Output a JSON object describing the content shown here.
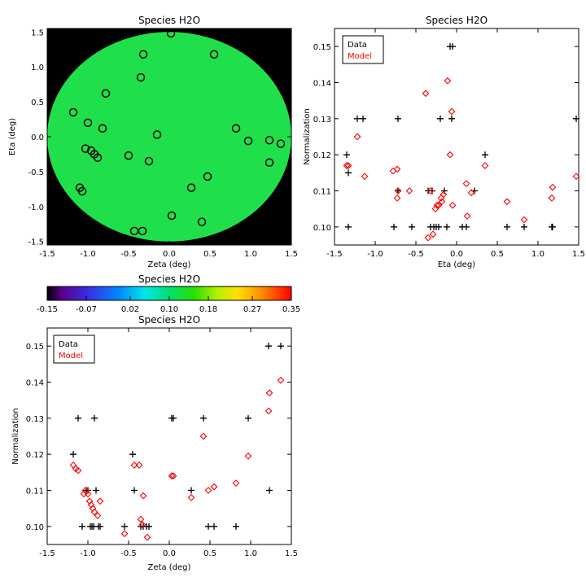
{
  "colors": {
    "data": "#000000",
    "model": "#ff0000",
    "field": "#1fe04a",
    "mask": "#000000"
  },
  "chart_data": [
    {
      "id": "map",
      "type": "scatter",
      "title": "Species H2O",
      "xlabel": "Zeta (deg)",
      "ylabel": "Eta (deg)",
      "xlim": [
        -1.5,
        1.5
      ],
      "ylim": [
        -1.55,
        1.55
      ],
      "xticks": [
        "-1.5",
        "-1.0",
        "-0.5",
        "0.0",
        "0.5",
        "1.0",
        "1.5"
      ],
      "yticks": [
        "-1.5",
        "-1.0",
        "-0.5",
        "0.0",
        "0.5",
        "1.0",
        "1.5"
      ],
      "field_radius": 1.5,
      "points": [
        {
          "x": 0.02,
          "y": 1.48
        },
        {
          "x": -0.32,
          "y": 1.18
        },
        {
          "x": 0.55,
          "y": 1.18
        },
        {
          "x": -0.35,
          "y": 0.85
        },
        {
          "x": -0.78,
          "y": 0.62
        },
        {
          "x": -1.18,
          "y": 0.35
        },
        {
          "x": -1.0,
          "y": 0.2
        },
        {
          "x": -0.82,
          "y": 0.12
        },
        {
          "x": -0.15,
          "y": 0.03
        },
        {
          "x": 0.82,
          "y": 0.12
        },
        {
          "x": 0.97,
          "y": -0.06
        },
        {
          "x": 1.23,
          "y": -0.05
        },
        {
          "x": 1.37,
          "y": -0.1
        },
        {
          "x": -1.03,
          "y": -0.17
        },
        {
          "x": -0.96,
          "y": -0.2
        },
        {
          "x": -0.92,
          "y": -0.25
        },
        {
          "x": -0.88,
          "y": -0.3
        },
        {
          "x": -0.5,
          "y": -0.27
        },
        {
          "x": -0.25,
          "y": -0.35
        },
        {
          "x": 1.23,
          "y": -0.37
        },
        {
          "x": 0.47,
          "y": -0.57
        },
        {
          "x": 0.27,
          "y": -0.73
        },
        {
          "x": -1.1,
          "y": -0.73
        },
        {
          "x": -1.07,
          "y": -0.78
        },
        {
          "x": 0.03,
          "y": -1.13
        },
        {
          "x": 0.4,
          "y": -1.22
        },
        {
          "x": -0.43,
          "y": -1.35
        },
        {
          "x": -0.33,
          "y": -1.35
        }
      ]
    },
    {
      "id": "colorbar",
      "type": "heatmap",
      "title": "Species H2O",
      "range": [
        -0.15,
        0.35
      ],
      "ticks": [
        "-0.15",
        "-0.07",
        "0.02",
        "0.10",
        "0.18",
        "0.27",
        "0.35"
      ]
    },
    {
      "id": "eta",
      "type": "scatter",
      "title": "Species H2O",
      "xlabel": "Eta (deg)",
      "ylabel": "Normalization",
      "xlim": [
        -1.5,
        1.5
      ],
      "ylim": [
        0.095,
        0.155
      ],
      "xticks": [
        "-1.5",
        "-1.0",
        "-0.5",
        "0.0",
        "0.5",
        "1.0",
        "1.5"
      ],
      "yticks": [
        "0.10",
        "0.11",
        "0.12",
        "0.13",
        "0.14",
        "0.15"
      ],
      "legend": [
        "Data",
        "Model"
      ],
      "series": [
        {
          "name": "Data",
          "marker": "plus",
          "points": [
            [
              -1.35,
              0.12
            ],
            [
              -1.33,
              0.115
            ],
            [
              -1.33,
              0.1
            ],
            [
              -1.22,
              0.13
            ],
            [
              -1.15,
              0.13
            ],
            [
              -0.77,
              0.1
            ],
            [
              -0.72,
              0.13
            ],
            [
              -0.72,
              0.11
            ],
            [
              -0.55,
              0.1
            ],
            [
              -0.35,
              0.11
            ],
            [
              -0.3,
              0.11
            ],
            [
              -0.32,
              0.1
            ],
            [
              -0.28,
              0.1
            ],
            [
              -0.25,
              0.1
            ],
            [
              -0.22,
              0.1
            ],
            [
              -0.2,
              0.13
            ],
            [
              -0.15,
              0.11
            ],
            [
              -0.12,
              0.1
            ],
            [
              -0.08,
              0.15
            ],
            [
              -0.05,
              0.15
            ],
            [
              -0.06,
              0.13
            ],
            [
              0.07,
              0.1
            ],
            [
              0.12,
              0.1
            ],
            [
              0.22,
              0.11
            ],
            [
              0.35,
              0.12
            ],
            [
              0.62,
              0.1
            ],
            [
              0.83,
              0.1
            ],
            [
              1.17,
              0.1
            ],
            [
              1.18,
              0.1
            ],
            [
              1.47,
              0.13
            ]
          ]
        },
        {
          "name": "Model",
          "marker": "diamond",
          "points": [
            [
              -1.35,
              0.117
            ],
            [
              -1.33,
              0.117
            ],
            [
              -1.22,
              0.125
            ],
            [
              -1.13,
              0.114
            ],
            [
              -0.78,
              0.1155
            ],
            [
              -0.73,
              0.116
            ],
            [
              -0.73,
              0.108
            ],
            [
              -0.72,
              0.11
            ],
            [
              -0.58,
              0.11
            ],
            [
              -0.38,
              0.137
            ],
            [
              -0.35,
              0.097
            ],
            [
              -0.32,
              0.11
            ],
            [
              -0.29,
              0.098
            ],
            [
              -0.26,
              0.105
            ],
            [
              -0.24,
              0.106
            ],
            [
              -0.22,
              0.106
            ],
            [
              -0.19,
              0.108
            ],
            [
              -0.18,
              0.107
            ],
            [
              -0.16,
              0.109
            ],
            [
              -0.11,
              0.1405
            ],
            [
              -0.08,
              0.12
            ],
            [
              -0.06,
              0.132
            ],
            [
              -0.05,
              0.106
            ],
            [
              0.12,
              0.112
            ],
            [
              0.13,
              0.103
            ],
            [
              0.18,
              0.1095
            ],
            [
              0.35,
              0.117
            ],
            [
              0.62,
              0.107
            ],
            [
              0.83,
              0.102
            ],
            [
              1.17,
              0.108
            ],
            [
              1.18,
              0.111
            ],
            [
              1.47,
              0.114
            ]
          ]
        }
      ]
    },
    {
      "id": "zeta",
      "type": "scatter",
      "title": "Species H2O",
      "xlabel": "Zeta (deg)",
      "ylabel": "Normalization",
      "xlim": [
        -1.5,
        1.5
      ],
      "ylim": [
        0.095,
        0.155
      ],
      "xticks": [
        "-1.5",
        "-1.0",
        "-0.5",
        "0.0",
        "0.5",
        "1.0",
        "1.5"
      ],
      "yticks": [
        "0.10",
        "0.11",
        "0.12",
        "0.13",
        "0.14",
        "0.15"
      ],
      "legend": [
        "Data",
        "Model"
      ],
      "series": [
        {
          "name": "Data",
          "marker": "plus",
          "points": [
            [
              -1.18,
              0.12
            ],
            [
              -1.12,
              0.13
            ],
            [
              -1.07,
              0.1
            ],
            [
              -1.02,
              0.11
            ],
            [
              -1.0,
              0.11
            ],
            [
              -0.97,
              0.1
            ],
            [
              -0.95,
              0.1
            ],
            [
              -0.93,
              0.1
            ],
            [
              -0.92,
              0.13
            ],
            [
              -0.9,
              0.11
            ],
            [
              -0.87,
              0.1
            ],
            [
              -0.85,
              0.1
            ],
            [
              -0.55,
              0.1
            ],
            [
              -0.45,
              0.12
            ],
            [
              -0.43,
              0.11
            ],
            [
              -0.35,
              0.1
            ],
            [
              -0.32,
              0.1
            ],
            [
              -0.28,
              0.1
            ],
            [
              -0.25,
              0.1
            ],
            [
              0.03,
              0.13
            ],
            [
              0.05,
              0.13
            ],
            [
              0.27,
              0.11
            ],
            [
              0.42,
              0.13
            ],
            [
              0.48,
              0.1
            ],
            [
              0.55,
              0.1
            ],
            [
              0.82,
              0.1
            ],
            [
              0.97,
              0.13
            ],
            [
              1.22,
              0.15
            ],
            [
              1.23,
              0.11
            ],
            [
              1.37,
              0.15
            ]
          ]
        },
        {
          "name": "Model",
          "marker": "diamond",
          "points": [
            [
              -1.18,
              0.117
            ],
            [
              -1.15,
              0.116
            ],
            [
              -1.12,
              0.1155
            ],
            [
              -1.05,
              0.109
            ],
            [
              -1.03,
              0.11
            ],
            [
              -1.0,
              0.109
            ],
            [
              -0.98,
              0.107
            ],
            [
              -0.96,
              0.106
            ],
            [
              -0.94,
              0.105
            ],
            [
              -0.92,
              0.104
            ],
            [
              -0.88,
              0.103
            ],
            [
              -0.85,
              0.107
            ],
            [
              -0.55,
              0.098
            ],
            [
              -0.43,
              0.117
            ],
            [
              -0.37,
              0.117
            ],
            [
              -0.35,
              0.102
            ],
            [
              -0.33,
              0.1005
            ],
            [
              -0.32,
              0.1085
            ],
            [
              -0.27,
              0.097
            ],
            [
              0.03,
              0.114
            ],
            [
              0.05,
              0.114
            ],
            [
              0.27,
              0.108
            ],
            [
              0.42,
              0.125
            ],
            [
              0.48,
              0.11
            ],
            [
              0.55,
              0.111
            ],
            [
              0.82,
              0.112
            ],
            [
              0.97,
              0.1195
            ],
            [
              1.22,
              0.132
            ],
            [
              1.23,
              0.137
            ],
            [
              1.37,
              0.1405
            ]
          ]
        }
      ]
    }
  ]
}
